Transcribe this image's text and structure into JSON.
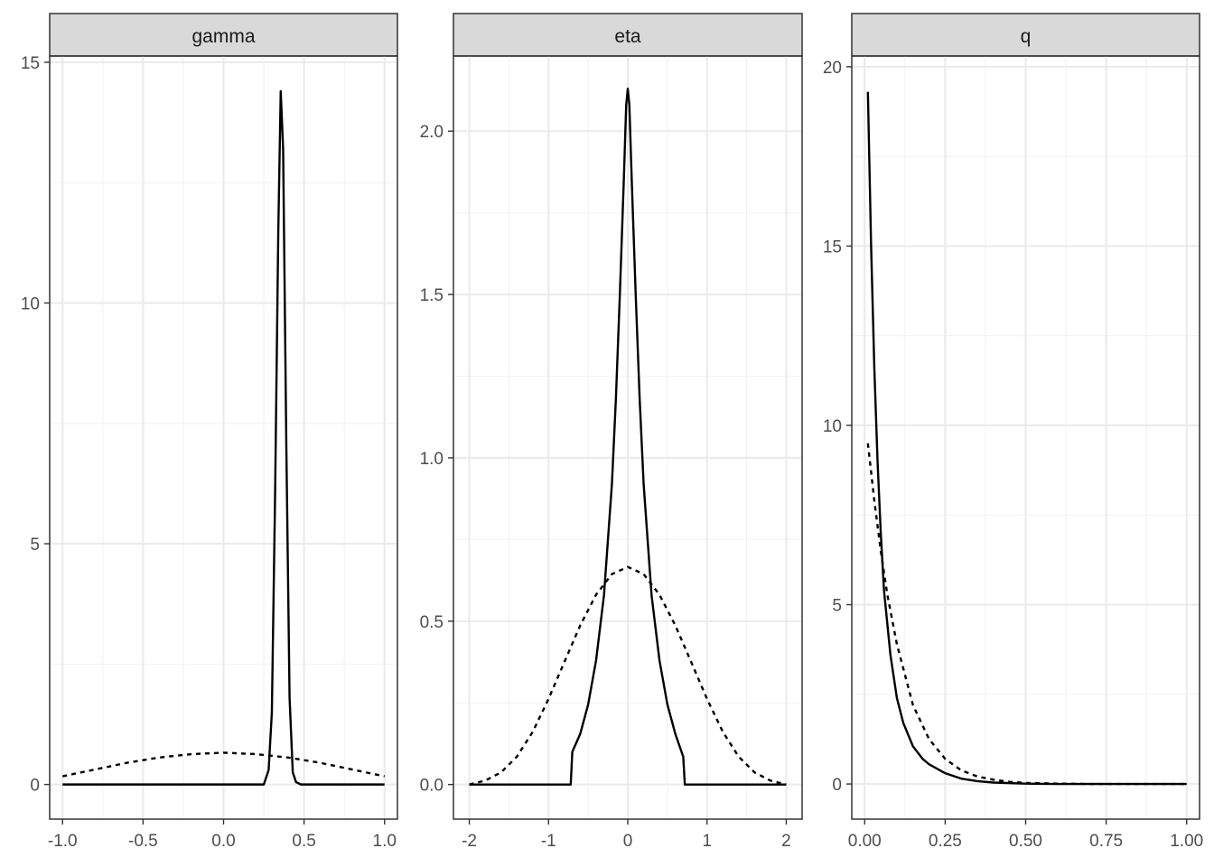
{
  "chart_data": [
    {
      "type": "line",
      "facet": "gamma",
      "xlim": [
        -1.08,
        1.08
      ],
      "ylim": [
        -0.72,
        15.13
      ],
      "x_ticks": [
        -1.0,
        -0.5,
        0.0,
        0.5,
        1.0
      ],
      "x_tick_labels": [
        "-1.0",
        "-0.5",
        "0.0",
        "0.5",
        "1.0"
      ],
      "y_ticks": [
        0,
        5,
        10,
        15
      ],
      "y_tick_labels": [
        "0",
        "5",
        "10",
        "15"
      ],
      "series": [
        {
          "linetype": "solid",
          "points": [
            [
              -1.0,
              0
            ],
            [
              0.25,
              0
            ],
            [
              0.28,
              0.3
            ],
            [
              0.3,
              1.5
            ],
            [
              0.32,
              6
            ],
            [
              0.34,
              11.5
            ],
            [
              0.355,
              14.4
            ],
            [
              0.37,
              13.2
            ],
            [
              0.39,
              7
            ],
            [
              0.41,
              1.8
            ],
            [
              0.43,
              0.25
            ],
            [
              0.45,
              0.05
            ],
            [
              0.48,
              0
            ],
            [
              1.0,
              0
            ]
          ]
        },
        {
          "linetype": "dashed",
          "points": [
            [
              -1.0,
              0.17
            ],
            [
              -0.8,
              0.31
            ],
            [
              -0.6,
              0.45
            ],
            [
              -0.4,
              0.56
            ],
            [
              -0.2,
              0.63
            ],
            [
              0.0,
              0.66
            ],
            [
              0.2,
              0.63
            ],
            [
              0.4,
              0.56
            ],
            [
              0.6,
              0.45
            ],
            [
              0.8,
              0.31
            ],
            [
              1.0,
              0.17
            ]
          ]
        }
      ]
    },
    {
      "type": "line",
      "facet": "eta",
      "xlim": [
        -2.2,
        2.2
      ],
      "ylim": [
        -0.106,
        2.23
      ],
      "x_ticks": [
        -2,
        -1,
        0,
        1,
        2
      ],
      "x_tick_labels": [
        "-2",
        "-1",
        "0",
        "1",
        "2"
      ],
      "y_ticks": [
        0.0,
        0.5,
        1.0,
        1.5,
        2.0
      ],
      "y_tick_labels": [
        "0.0",
        "0.5",
        "1.0",
        "1.5",
        "2.0"
      ],
      "series": [
        {
          "linetype": "solid",
          "points": [
            [
              -2.0,
              0
            ],
            [
              -0.72,
              0
            ],
            [
              -0.7,
              0.1
            ],
            [
              -0.6,
              0.155
            ],
            [
              -0.5,
              0.245
            ],
            [
              -0.4,
              0.38
            ],
            [
              -0.3,
              0.58
            ],
            [
              -0.2,
              0.92
            ],
            [
              -0.15,
              1.18
            ],
            [
              -0.1,
              1.5
            ],
            [
              -0.05,
              1.85
            ],
            [
              -0.02,
              2.08
            ],
            [
              0.0,
              2.13
            ],
            [
              0.02,
              2.08
            ],
            [
              0.05,
              1.85
            ],
            [
              0.1,
              1.5
            ],
            [
              0.15,
              1.18
            ],
            [
              0.2,
              0.92
            ],
            [
              0.3,
              0.58
            ],
            [
              0.4,
              0.38
            ],
            [
              0.5,
              0.245
            ],
            [
              0.6,
              0.155
            ],
            [
              0.7,
              0.085
            ],
            [
              0.72,
              0
            ],
            [
              2.0,
              0
            ]
          ]
        },
        {
          "linetype": "dashed",
          "points": [
            [
              -2.0,
              0
            ],
            [
              -1.8,
              0.012
            ],
            [
              -1.6,
              0.037
            ],
            [
              -1.4,
              0.085
            ],
            [
              -1.2,
              0.161
            ],
            [
              -1.0,
              0.262
            ],
            [
              -0.8,
              0.375
            ],
            [
              -0.6,
              0.487
            ],
            [
              -0.4,
              0.581
            ],
            [
              -0.2,
              0.644
            ],
            [
              0.0,
              0.666
            ],
            [
              0.2,
              0.644
            ],
            [
              0.4,
              0.581
            ],
            [
              0.6,
              0.487
            ],
            [
              0.8,
              0.375
            ],
            [
              1.0,
              0.262
            ],
            [
              1.2,
              0.161
            ],
            [
              1.4,
              0.085
            ],
            [
              1.6,
              0.037
            ],
            [
              1.8,
              0.012
            ],
            [
              2.0,
              0
            ]
          ]
        }
      ]
    },
    {
      "type": "line",
      "facet": "q",
      "xlim": [
        -0.04,
        1.04
      ],
      "ylim": [
        -0.98,
        20.3
      ],
      "x_ticks": [
        0.0,
        0.25,
        0.5,
        0.75,
        1.0
      ],
      "x_tick_labels": [
        "0.00",
        "0.25",
        "0.50",
        "0.75",
        "1.00"
      ],
      "y_ticks": [
        0,
        5,
        10,
        15,
        20
      ],
      "y_tick_labels": [
        "0",
        "5",
        "10",
        "15",
        "20"
      ],
      "series": [
        {
          "linetype": "solid",
          "points": [
            [
              0.01,
              19.3
            ],
            [
              0.02,
              15.0
            ],
            [
              0.03,
              11.6
            ],
            [
              0.04,
              9.0
            ],
            [
              0.05,
              7.0
            ],
            [
              0.06,
              5.4
            ],
            [
              0.08,
              3.6
            ],
            [
              0.1,
              2.4
            ],
            [
              0.12,
              1.7
            ],
            [
              0.15,
              1.05
            ],
            [
              0.18,
              0.7
            ],
            [
              0.2,
              0.55
            ],
            [
              0.25,
              0.3
            ],
            [
              0.3,
              0.15
            ],
            [
              0.35,
              0.08
            ],
            [
              0.4,
              0.04
            ],
            [
              0.5,
              0.01
            ],
            [
              0.6,
              0
            ],
            [
              1.0,
              0
            ]
          ]
        },
        {
          "linetype": "dashed",
          "points": [
            [
              0.01,
              9.5
            ],
            [
              0.02,
              8.7
            ],
            [
              0.03,
              7.9
            ],
            [
              0.05,
              6.5
            ],
            [
              0.07,
              5.3
            ],
            [
              0.1,
              3.9
            ],
            [
              0.15,
              2.2
            ],
            [
              0.2,
              1.25
            ],
            [
              0.25,
              0.7
            ],
            [
              0.3,
              0.38
            ],
            [
              0.35,
              0.21
            ],
            [
              0.4,
              0.12
            ],
            [
              0.45,
              0.06
            ],
            [
              0.5,
              0.03
            ],
            [
              0.6,
              0.01
            ],
            [
              0.7,
              0
            ],
            [
              1.0,
              0
            ]
          ]
        }
      ]
    }
  ]
}
